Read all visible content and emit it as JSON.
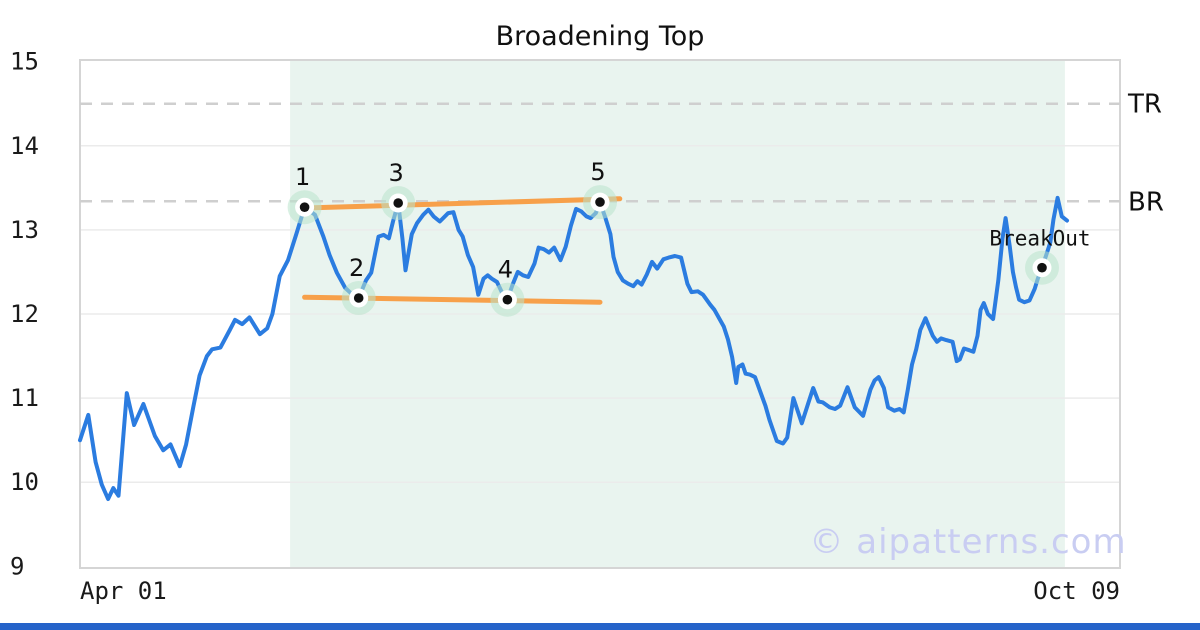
{
  "watermark": "© aipatterns.com",
  "colors": {
    "price_line": "#2b7ce0",
    "trendline": "#f7a04a",
    "pattern_region": "#e9f4ef",
    "marker_halo": "#b9e3cc",
    "marker_dot": "#111111",
    "grid": "#ebebeb",
    "level_dash": "#cfcfcf",
    "bottom_bar": "#2563c9",
    "watermark_text": "#c9cdf2"
  },
  "chart_data": {
    "type": "line",
    "title": "Broadening Top",
    "x_axis": {
      "start_label": "Apr 01",
      "end_label": "Oct 09"
    },
    "y_axis": {
      "ticks": [
        9,
        10,
        11,
        12,
        13,
        14,
        15
      ],
      "range": [
        8.98,
        15.02
      ]
    },
    "grid": "horizontal",
    "legend": "none",
    "levels": [
      {
        "label": "TR",
        "value": 14.5
      },
      {
        "label": "BR",
        "value": 13.34
      }
    ],
    "pattern_region": {
      "start_pct": 20.2,
      "end_pct": 94.7
    },
    "trendlines": [
      {
        "from": [
          21.6,
          13.26
        ],
        "to": [
          51.9,
          13.37
        ]
      },
      {
        "from": [
          21.6,
          12.2
        ],
        "to": [
          50.0,
          12.14
        ]
      }
    ],
    "pattern_points": [
      {
        "label": "1",
        "x": 21.6,
        "y": 13.27
      },
      {
        "label": "2",
        "x": 26.8,
        "y": 12.19
      },
      {
        "label": "3",
        "x": 30.6,
        "y": 13.32
      },
      {
        "label": "4",
        "x": 41.1,
        "y": 12.17
      },
      {
        "label": "5",
        "x": 50.0,
        "y": 13.33
      }
    ],
    "breakout": {
      "label": "BreakOut",
      "x": 92.5,
      "y": 12.55
    },
    "series": [
      {
        "name": "price",
        "points": [
          [
            0.0,
            10.5
          ],
          [
            0.8,
            10.8
          ],
          [
            1.5,
            10.24
          ],
          [
            2.1,
            9.97
          ],
          [
            2.7,
            9.8
          ],
          [
            3.2,
            9.93
          ],
          [
            3.7,
            9.84
          ],
          [
            4.5,
            11.06
          ],
          [
            5.2,
            10.68
          ],
          [
            6.1,
            10.93
          ],
          [
            7.2,
            10.55
          ],
          [
            8.0,
            10.38
          ],
          [
            8.7,
            10.45
          ],
          [
            9.6,
            10.19
          ],
          [
            10.2,
            10.45
          ],
          [
            10.9,
            10.9
          ],
          [
            11.5,
            11.27
          ],
          [
            12.2,
            11.5
          ],
          [
            12.7,
            11.58
          ],
          [
            13.5,
            11.6
          ],
          [
            14.4,
            11.81
          ],
          [
            14.9,
            11.93
          ],
          [
            15.6,
            11.88
          ],
          [
            16.3,
            11.96
          ],
          [
            17.3,
            11.76
          ],
          [
            18.0,
            11.83
          ],
          [
            18.5,
            12.0
          ],
          [
            19.2,
            12.45
          ],
          [
            20.0,
            12.64
          ],
          [
            20.8,
            12.95
          ],
          [
            21.6,
            13.27
          ],
          [
            22.6,
            13.18
          ],
          [
            23.4,
            12.92
          ],
          [
            24.0,
            12.7
          ],
          [
            24.7,
            12.49
          ],
          [
            25.5,
            12.31
          ],
          [
            26.2,
            12.23
          ],
          [
            26.8,
            12.19
          ],
          [
            27.5,
            12.4
          ],
          [
            28.0,
            12.49
          ],
          [
            28.7,
            12.92
          ],
          [
            29.2,
            12.94
          ],
          [
            29.7,
            12.9
          ],
          [
            30.1,
            13.1
          ],
          [
            30.6,
            13.32
          ],
          [
            31.0,
            12.9
          ],
          [
            31.3,
            12.52
          ],
          [
            31.9,
            12.95
          ],
          [
            32.4,
            13.08
          ],
          [
            33.0,
            13.18
          ],
          [
            33.5,
            13.24
          ],
          [
            34.0,
            13.16
          ],
          [
            34.6,
            13.1
          ],
          [
            35.4,
            13.2
          ],
          [
            35.9,
            13.21
          ],
          [
            36.4,
            13.0
          ],
          [
            36.8,
            12.92
          ],
          [
            37.3,
            12.7
          ],
          [
            37.8,
            12.56
          ],
          [
            38.3,
            12.23
          ],
          [
            38.8,
            12.42
          ],
          [
            39.2,
            12.46
          ],
          [
            39.6,
            12.42
          ],
          [
            40.1,
            12.38
          ],
          [
            40.6,
            12.25
          ],
          [
            41.1,
            12.17
          ],
          [
            41.6,
            12.35
          ],
          [
            42.1,
            12.5
          ],
          [
            42.6,
            12.46
          ],
          [
            43.1,
            12.44
          ],
          [
            43.7,
            12.6
          ],
          [
            44.1,
            12.79
          ],
          [
            44.6,
            12.77
          ],
          [
            45.1,
            12.73
          ],
          [
            45.6,
            12.79
          ],
          [
            46.2,
            12.64
          ],
          [
            46.7,
            12.8
          ],
          [
            47.2,
            13.05
          ],
          [
            47.7,
            13.25
          ],
          [
            48.2,
            13.22
          ],
          [
            48.7,
            13.16
          ],
          [
            49.1,
            13.14
          ],
          [
            49.6,
            13.2
          ],
          [
            50.0,
            13.33
          ],
          [
            50.5,
            13.15
          ],
          [
            51.0,
            12.95
          ],
          [
            51.3,
            12.68
          ],
          [
            51.7,
            12.5
          ],
          [
            52.2,
            12.4
          ],
          [
            52.7,
            12.36
          ],
          [
            53.2,
            12.33
          ],
          [
            53.6,
            12.39
          ],
          [
            54.0,
            12.35
          ],
          [
            54.5,
            12.47
          ],
          [
            55.0,
            12.62
          ],
          [
            55.5,
            12.54
          ],
          [
            56.1,
            12.65
          ],
          [
            56.6,
            12.67
          ],
          [
            57.2,
            12.69
          ],
          [
            57.8,
            12.67
          ],
          [
            58.4,
            12.36
          ],
          [
            58.8,
            12.26
          ],
          [
            59.4,
            12.27
          ],
          [
            59.9,
            12.23
          ],
          [
            60.6,
            12.11
          ],
          [
            61.0,
            12.05
          ],
          [
            61.9,
            11.85
          ],
          [
            62.3,
            11.7
          ],
          [
            62.7,
            11.49
          ],
          [
            63.1,
            11.18
          ],
          [
            63.3,
            11.37
          ],
          [
            63.7,
            11.4
          ],
          [
            64.0,
            11.29
          ],
          [
            64.4,
            11.28
          ],
          [
            64.9,
            11.25
          ],
          [
            65.9,
            10.91
          ],
          [
            66.3,
            10.74
          ],
          [
            67.0,
            10.49
          ],
          [
            67.6,
            10.46
          ],
          [
            68.0,
            10.53
          ],
          [
            68.6,
            11.0
          ],
          [
            69.4,
            10.7
          ],
          [
            70.0,
            10.93
          ],
          [
            70.5,
            11.12
          ],
          [
            71.0,
            10.96
          ],
          [
            71.4,
            10.95
          ],
          [
            72.1,
            10.89
          ],
          [
            72.6,
            10.87
          ],
          [
            73.1,
            10.91
          ],
          [
            73.8,
            11.13
          ],
          [
            74.5,
            10.89
          ],
          [
            75.3,
            10.79
          ],
          [
            76.0,
            11.1
          ],
          [
            76.4,
            11.21
          ],
          [
            76.8,
            11.25
          ],
          [
            77.3,
            11.12
          ],
          [
            77.7,
            10.89
          ],
          [
            78.3,
            10.85
          ],
          [
            78.8,
            10.87
          ],
          [
            79.2,
            10.83
          ],
          [
            79.6,
            11.1
          ],
          [
            80.0,
            11.4
          ],
          [
            80.4,
            11.58
          ],
          [
            80.8,
            11.81
          ],
          [
            81.3,
            11.95
          ],
          [
            82.0,
            11.74
          ],
          [
            82.4,
            11.67
          ],
          [
            82.8,
            11.71
          ],
          [
            83.3,
            11.69
          ],
          [
            83.9,
            11.67
          ],
          [
            84.3,
            11.44
          ],
          [
            84.6,
            11.46
          ],
          [
            85.0,
            11.59
          ],
          [
            85.5,
            11.57
          ],
          [
            85.9,
            11.55
          ],
          [
            86.3,
            11.74
          ],
          [
            86.6,
            12.05
          ],
          [
            86.9,
            12.13
          ],
          [
            87.3,
            12.0
          ],
          [
            87.8,
            11.94
          ],
          [
            88.3,
            12.4
          ],
          [
            88.7,
            12.9
          ],
          [
            89.0,
            13.14
          ],
          [
            89.4,
            12.8
          ],
          [
            89.7,
            12.5
          ],
          [
            90.0,
            12.32
          ],
          [
            90.3,
            12.17
          ],
          [
            90.8,
            12.14
          ],
          [
            91.3,
            12.16
          ],
          [
            91.8,
            12.3
          ],
          [
            92.1,
            12.42
          ],
          [
            92.5,
            12.55
          ],
          [
            92.9,
            12.7
          ],
          [
            93.3,
            12.85
          ],
          [
            93.6,
            13.12
          ],
          [
            94.0,
            13.38
          ],
          [
            94.4,
            13.16
          ],
          [
            94.9,
            13.11
          ]
        ]
      }
    ]
  }
}
